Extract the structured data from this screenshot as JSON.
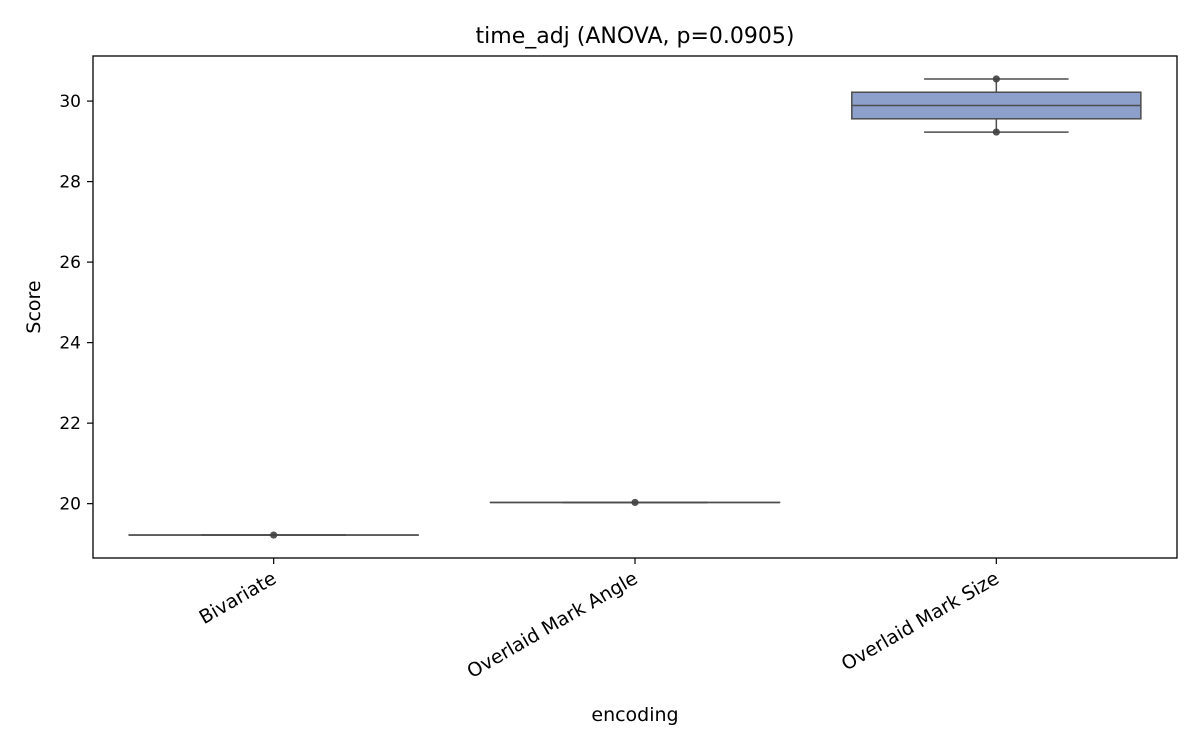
{
  "chart_data": {
    "type": "box",
    "title": "time_adj (ANOVA, p=0.0905)",
    "xlabel": "encoding",
    "ylabel": "Score",
    "categories": [
      "Bivariate",
      "Overlaid Mark Angle",
      "Overlaid Mark Size"
    ],
    "ylim": [
      18.65,
      31.12
    ],
    "yticks": [
      20,
      22,
      24,
      26,
      28,
      30
    ],
    "grid": false,
    "boxes": [
      {
        "category": "Bivariate",
        "min": 19.22,
        "q1": 19.22,
        "median": 19.22,
        "q3": 19.22,
        "max": 19.22,
        "points": [
          19.22
        ]
      },
      {
        "category": "Overlaid Mark Angle",
        "min": 20.03,
        "q1": 20.03,
        "median": 20.03,
        "q3": 20.03,
        "max": 20.03,
        "points": [
          20.03
        ]
      },
      {
        "category": "Overlaid Mark Size",
        "min": 29.23,
        "q1": 29.56,
        "median": 29.89,
        "q3": 30.22,
        "max": 30.55,
        "points": [
          30.55,
          29.23
        ]
      }
    ],
    "colors": {
      "box_fill": "#8da0cb",
      "line": "#4d4d4d",
      "point": "#404040"
    }
  }
}
